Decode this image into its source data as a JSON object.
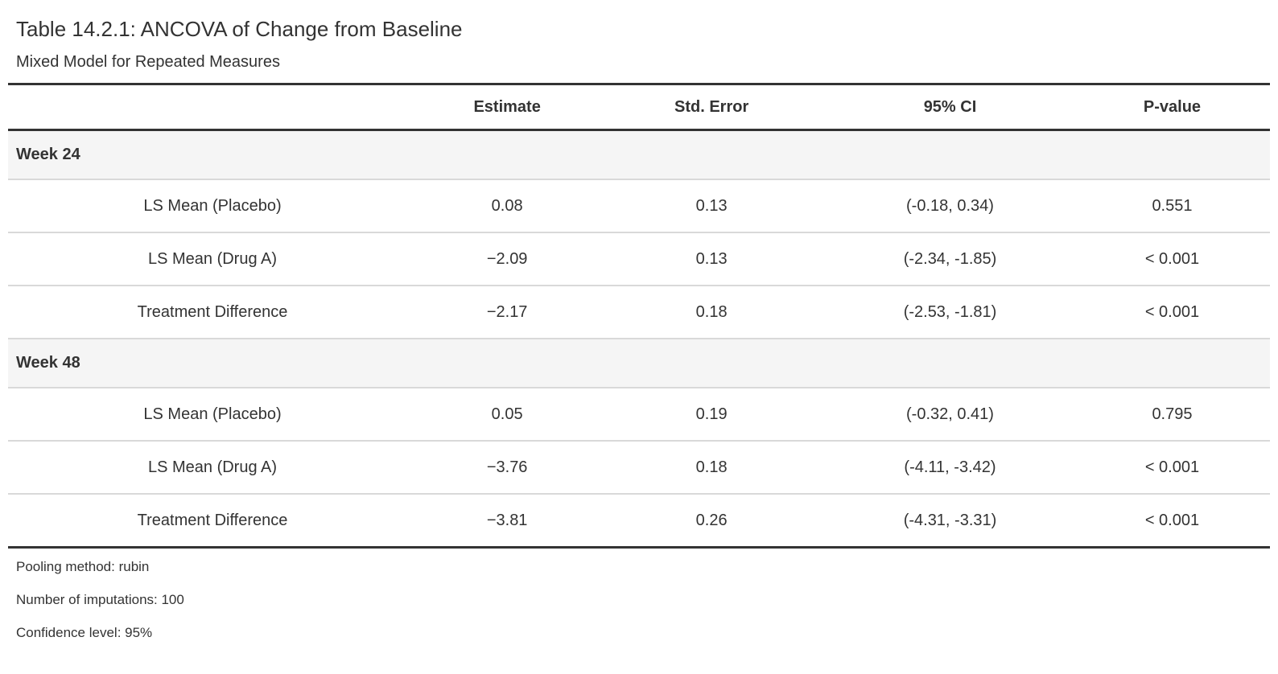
{
  "header": {
    "title": "Table 14.2.1: ANCOVA of Change from Baseline",
    "subtitle": "Mixed Model for Repeated Measures"
  },
  "table": {
    "columns": [
      "",
      "Estimate",
      "Std. Error",
      "95% CI",
      "P-value"
    ],
    "groups": [
      {
        "label": "Week 24",
        "rows": [
          {
            "label": "LS Mean (Placebo)",
            "estimate": "0.08",
            "std_error": "0.13",
            "ci": "(-0.18, 0.34)",
            "p_value": "0.551"
          },
          {
            "label": "LS Mean (Drug A)",
            "estimate": "−2.09",
            "std_error": "0.13",
            "ci": "(-2.34, -1.85)",
            "p_value": "< 0.001"
          },
          {
            "label": "Treatment Difference",
            "estimate": "−2.17",
            "std_error": "0.18",
            "ci": "(-2.53, -1.81)",
            "p_value": "< 0.001"
          }
        ]
      },
      {
        "label": "Week 48",
        "rows": [
          {
            "label": "LS Mean (Placebo)",
            "estimate": "0.05",
            "std_error": "0.19",
            "ci": "(-0.32, 0.41)",
            "p_value": "0.795"
          },
          {
            "label": "LS Mean (Drug A)",
            "estimate": "−3.76",
            "std_error": "0.18",
            "ci": "(-4.11, -3.42)",
            "p_value": "< 0.001"
          },
          {
            "label": "Treatment Difference",
            "estimate": "−3.81",
            "std_error": "0.26",
            "ci": "(-4.31, -3.31)",
            "p_value": "< 0.001"
          }
        ]
      }
    ],
    "footnotes": [
      "Pooling method: rubin",
      "Number of imputations: 100",
      "Confidence level: 95%"
    ]
  },
  "colors": {
    "text": "#333333",
    "heavy_border": "#333333",
    "group_row_bg": "#f5f5f5",
    "row_border": "#d9d9d9",
    "page_bg": "#ffffff"
  }
}
